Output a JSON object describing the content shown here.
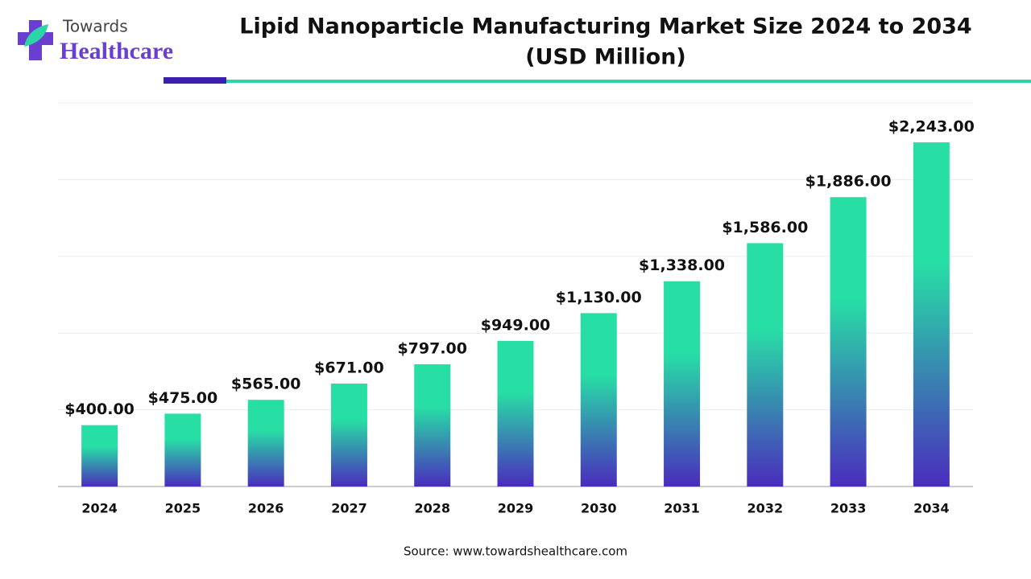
{
  "logo": {
    "top": "Towards",
    "bottom": "Healthcare"
  },
  "chart_data": {
    "type": "bar",
    "title": "Lipid Nanoparticle Manufacturing Market Size 2024 to 2034",
    "subtitle": "(USD Million)",
    "categories": [
      "2024",
      "2025",
      "2026",
      "2027",
      "2028",
      "2029",
      "2030",
      "2031",
      "2032",
      "2033",
      "2034"
    ],
    "values": [
      400,
      475,
      565,
      671,
      797,
      949,
      1130,
      1338,
      1586,
      1886,
      2243
    ],
    "value_labels": [
      "$400.00",
      "$475.00",
      "$565.00",
      "$671.00",
      "$797.00",
      "$949.00",
      "$1,130.00",
      "$1,338.00",
      "$1,586.00",
      "$1,886.00",
      "$2,243.00"
    ],
    "gradient": [
      "#27dfa5",
      "#4a2cbd"
    ],
    "ylim": [
      0,
      2500
    ],
    "yticks": [
      0,
      500,
      1000,
      1500,
      2000,
      2500
    ],
    "grid": true,
    "source": "Source: www.towardshealthcare.com"
  }
}
